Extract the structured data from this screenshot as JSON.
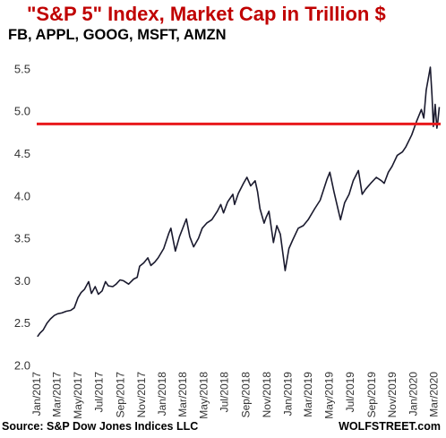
{
  "chart_data": {
    "type": "line",
    "title": "\"S&P 5\" Index, Market Cap in Trillion $",
    "subtitle": "FB, APPL, GOOG, MSFT, AMZN",
    "xlabel": "",
    "ylabel": "",
    "ylim": [
      2.0,
      5.7
    ],
    "yticks": [
      2.0,
      2.5,
      3.0,
      3.5,
      4.0,
      4.5,
      5.0,
      5.5
    ],
    "ytick_labels": [
      "2.0",
      "2.5",
      "3.0",
      "3.5",
      "4.0",
      "4.5",
      "5.0",
      "5.5"
    ],
    "xlim": [
      "2017-01-01",
      "2020-03-20"
    ],
    "xticks": [
      {
        "date": "2017-01-01",
        "label": "Jan/2017"
      },
      {
        "date": "2017-03-01",
        "label": "Mar/2017"
      },
      {
        "date": "2017-05-01",
        "label": "May/2017"
      },
      {
        "date": "2017-07-01",
        "label": "Jul/2017"
      },
      {
        "date": "2017-09-01",
        "label": "Sep/2017"
      },
      {
        "date": "2017-11-01",
        "label": "Nov/2017"
      },
      {
        "date": "2018-01-01",
        "label": "Jan/2018"
      },
      {
        "date": "2018-03-01",
        "label": "Mar/2018"
      },
      {
        "date": "2018-05-01",
        "label": "May/2018"
      },
      {
        "date": "2018-07-01",
        "label": "Jul/2018"
      },
      {
        "date": "2018-09-01",
        "label": "Sep/2018"
      },
      {
        "date": "2018-11-01",
        "label": "Nov/2018"
      },
      {
        "date": "2019-01-01",
        "label": "Jan/2019"
      },
      {
        "date": "2019-03-01",
        "label": "Mar/2019"
      },
      {
        "date": "2019-05-01",
        "label": "May/2019"
      },
      {
        "date": "2019-07-01",
        "label": "Jul/2019"
      },
      {
        "date": "2019-09-01",
        "label": "Sep/2019"
      },
      {
        "date": "2019-11-01",
        "label": "Nov/2019"
      },
      {
        "date": "2020-01-01",
        "label": "Jan/2020"
      },
      {
        "date": "2020-03-01",
        "label": "Mar/2020"
      }
    ],
    "grid": false,
    "series": [
      {
        "color": "#1a1a2e",
        "points": [
          [
            "2017-01-03",
            2.34
          ],
          [
            "2017-01-10",
            2.38
          ],
          [
            "2017-01-20",
            2.42
          ],
          [
            "2017-01-31",
            2.5
          ],
          [
            "2017-02-10",
            2.55
          ],
          [
            "2017-02-21",
            2.59
          ],
          [
            "2017-03-03",
            2.61
          ],
          [
            "2017-03-15",
            2.62
          ],
          [
            "2017-03-28",
            2.64
          ],
          [
            "2017-04-10",
            2.65
          ],
          [
            "2017-04-20",
            2.68
          ],
          [
            "2017-05-01",
            2.8
          ],
          [
            "2017-05-10",
            2.86
          ],
          [
            "2017-05-20",
            2.9
          ],
          [
            "2017-06-01",
            2.99
          ],
          [
            "2017-06-09",
            2.85
          ],
          [
            "2017-06-20",
            2.93
          ],
          [
            "2017-06-29",
            2.84
          ],
          [
            "2017-07-10",
            2.88
          ],
          [
            "2017-07-20",
            2.99
          ],
          [
            "2017-07-28",
            2.94
          ],
          [
            "2017-08-10",
            2.93
          ],
          [
            "2017-08-20",
            2.96
          ],
          [
            "2017-08-31",
            3.01
          ],
          [
            "2017-09-10",
            3.0
          ],
          [
            "2017-09-25",
            2.96
          ],
          [
            "2017-10-10",
            3.02
          ],
          [
            "2017-10-20",
            3.04
          ],
          [
            "2017-10-27",
            3.17
          ],
          [
            "2017-11-08",
            3.21
          ],
          [
            "2017-11-20",
            3.27
          ],
          [
            "2017-11-29",
            3.18
          ],
          [
            "2017-12-10",
            3.22
          ],
          [
            "2017-12-20",
            3.27
          ],
          [
            "2018-01-05",
            3.38
          ],
          [
            "2018-01-20",
            3.56
          ],
          [
            "2018-01-26",
            3.62
          ],
          [
            "2018-02-08",
            3.35
          ],
          [
            "2018-02-20",
            3.52
          ],
          [
            "2018-03-12",
            3.73
          ],
          [
            "2018-03-22",
            3.52
          ],
          [
            "2018-04-02",
            3.4
          ],
          [
            "2018-04-16",
            3.5
          ],
          [
            "2018-04-27",
            3.62
          ],
          [
            "2018-05-10",
            3.68
          ],
          [
            "2018-05-25",
            3.72
          ],
          [
            "2018-06-10",
            3.82
          ],
          [
            "2018-06-20",
            3.9
          ],
          [
            "2018-06-28",
            3.8
          ],
          [
            "2018-07-10",
            3.93
          ],
          [
            "2018-07-25",
            4.02
          ],
          [
            "2018-07-30",
            3.9
          ],
          [
            "2018-08-10",
            4.03
          ],
          [
            "2018-08-25",
            4.15
          ],
          [
            "2018-09-04",
            4.22
          ],
          [
            "2018-09-15",
            4.12
          ],
          [
            "2018-09-28",
            4.18
          ],
          [
            "2018-10-05",
            4.05
          ],
          [
            "2018-10-12",
            3.85
          ],
          [
            "2018-10-24",
            3.68
          ],
          [
            "2018-10-30",
            3.75
          ],
          [
            "2018-11-07",
            3.82
          ],
          [
            "2018-11-20",
            3.45
          ],
          [
            "2018-11-30",
            3.65
          ],
          [
            "2018-12-10",
            3.55
          ],
          [
            "2018-12-24",
            3.12
          ],
          [
            "2019-01-04",
            3.38
          ],
          [
            "2019-01-15",
            3.48
          ],
          [
            "2019-01-31",
            3.62
          ],
          [
            "2019-02-15",
            3.65
          ],
          [
            "2019-03-01",
            3.72
          ],
          [
            "2019-03-20",
            3.85
          ],
          [
            "2019-04-05",
            3.95
          ],
          [
            "2019-04-25",
            4.2
          ],
          [
            "2019-05-03",
            4.28
          ],
          [
            "2019-05-15",
            4.05
          ],
          [
            "2019-06-03",
            3.72
          ],
          [
            "2019-06-15",
            3.92
          ],
          [
            "2019-06-28",
            4.02
          ],
          [
            "2019-07-10",
            4.18
          ],
          [
            "2019-07-25",
            4.3
          ],
          [
            "2019-08-05",
            4.02
          ],
          [
            "2019-08-15",
            4.08
          ],
          [
            "2019-08-30",
            4.15
          ],
          [
            "2019-09-15",
            4.22
          ],
          [
            "2019-09-30",
            4.18
          ],
          [
            "2019-10-08",
            4.15
          ],
          [
            "2019-10-20",
            4.28
          ],
          [
            "2019-10-31",
            4.35
          ],
          [
            "2019-11-15",
            4.48
          ],
          [
            "2019-11-30",
            4.52
          ],
          [
            "2019-12-10",
            4.58
          ],
          [
            "2019-12-27",
            4.72
          ],
          [
            "2020-01-10",
            4.88
          ],
          [
            "2020-01-24",
            5.02
          ],
          [
            "2020-01-31",
            4.92
          ],
          [
            "2020-02-07",
            5.25
          ],
          [
            "2020-02-19",
            5.52
          ],
          [
            "2020-02-24",
            5.18
          ],
          [
            "2020-02-28",
            4.82
          ],
          [
            "2020-03-04",
            5.08
          ],
          [
            "2020-03-09",
            4.8
          ],
          [
            "2020-03-12",
            4.88
          ],
          [
            "2020-03-16",
            5.05
          ]
        ]
      }
    ],
    "reference_line": {
      "y": 4.85,
      "color": "#e8191c"
    }
  },
  "footer": {
    "source": "Source: S&P Dow Jones Indices LLC",
    "brand": "WOLFSTREET.com"
  }
}
